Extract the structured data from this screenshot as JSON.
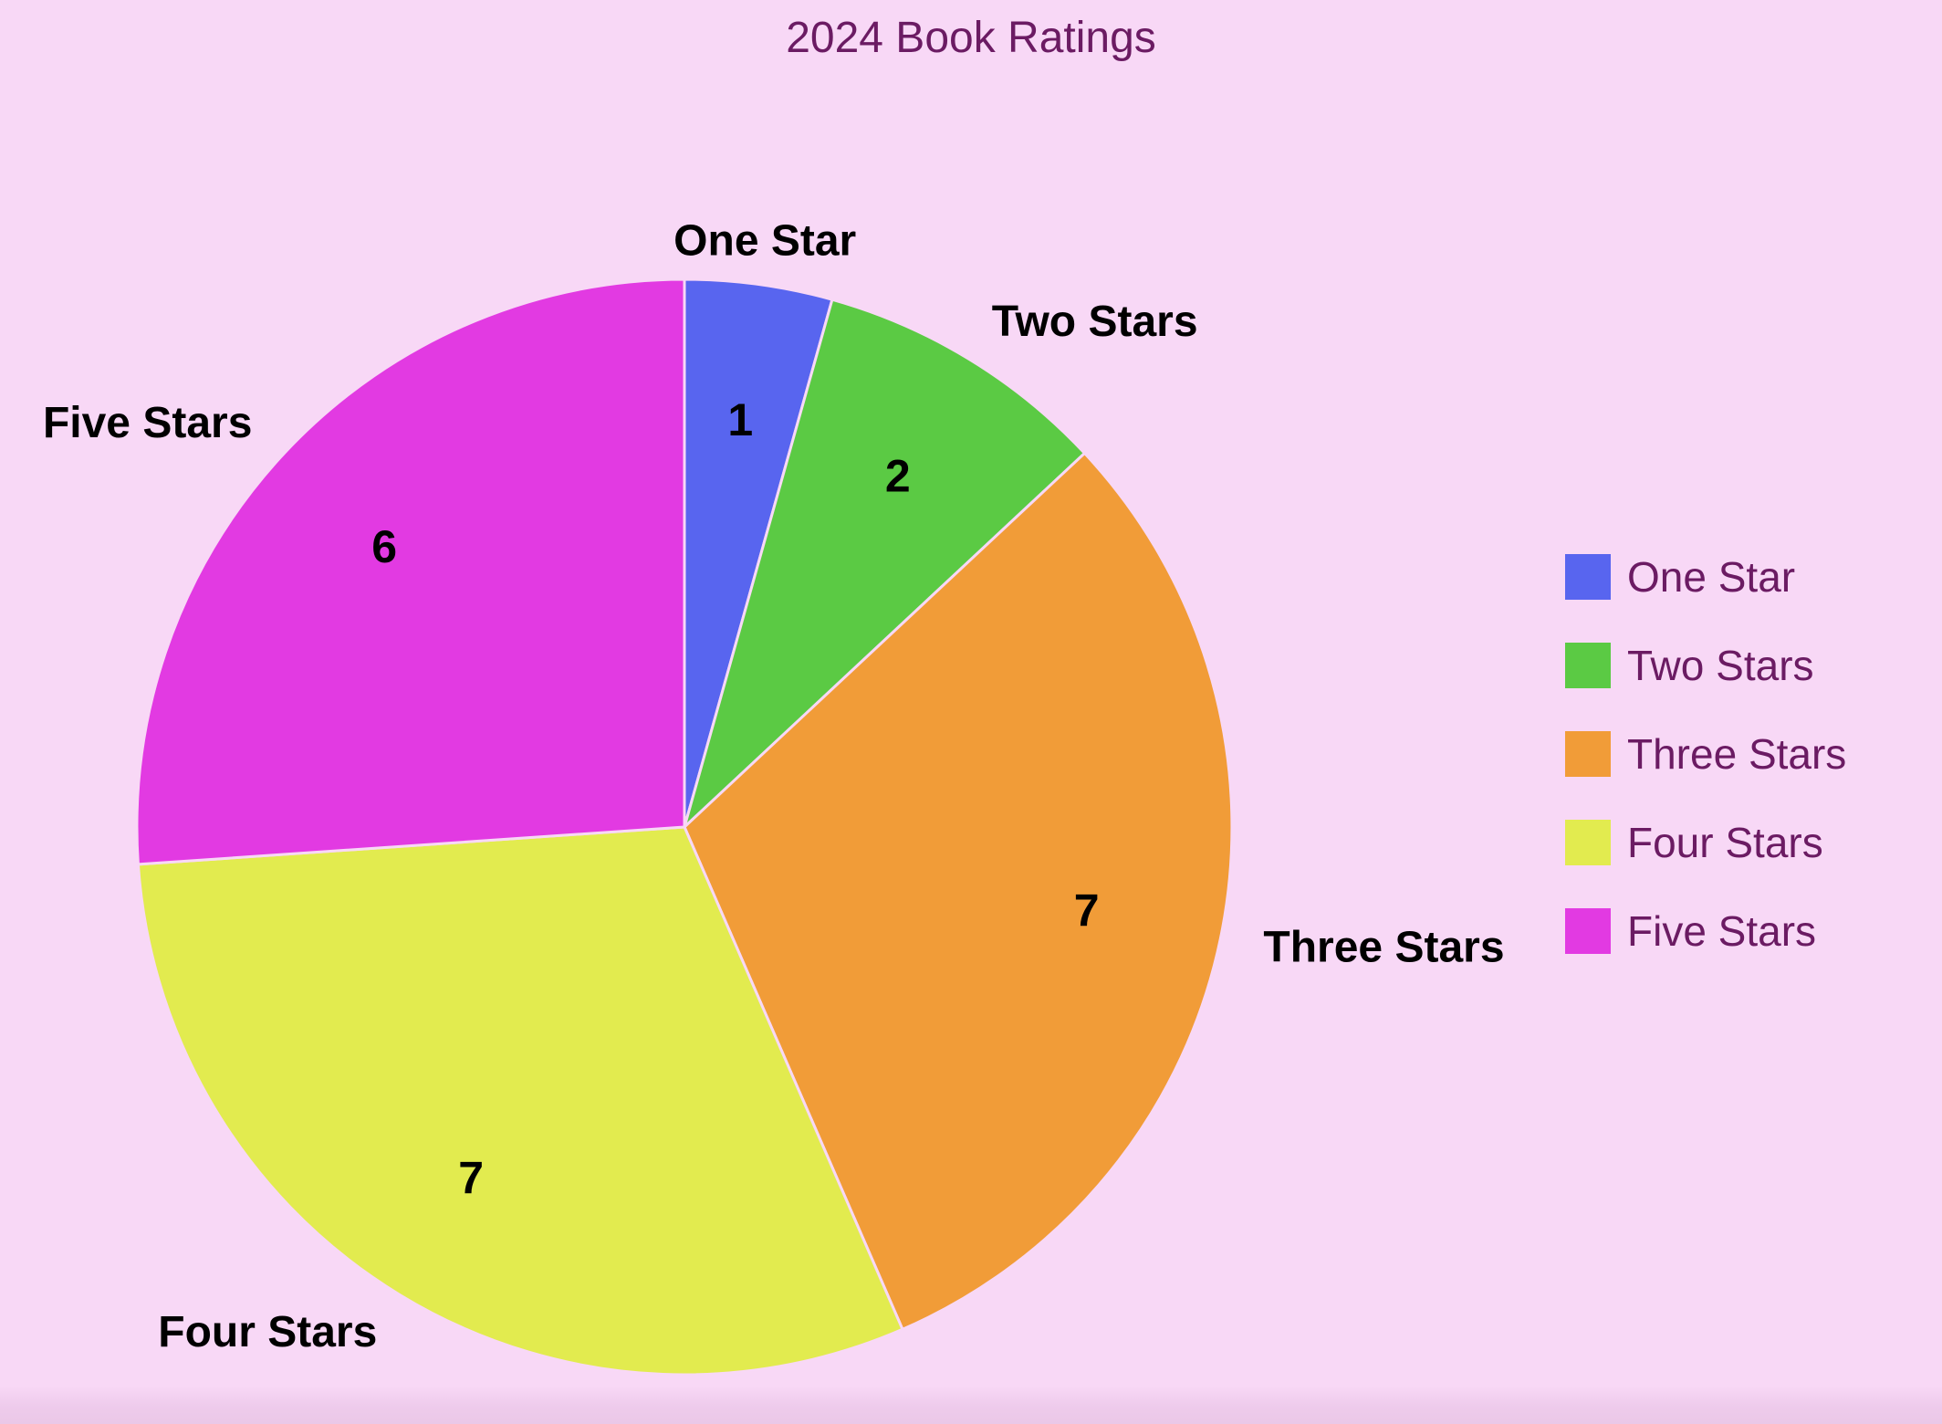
{
  "page": {
    "title": "2024 Book Ratings"
  },
  "colors": {
    "background": "#f8d8f6",
    "title_text": "#6b1b63",
    "legend_text": "#6b1b63",
    "label_text": "#000000"
  },
  "chart_data": {
    "type": "pie",
    "title": "2024 Book Ratings",
    "categories": [
      "One Star",
      "Two Stars",
      "Three Stars",
      "Four Stars",
      "Five Stars"
    ],
    "values": [
      1,
      2,
      7,
      7,
      6
    ],
    "total": 23,
    "colors": [
      "#5865ef",
      "#5bca44",
      "#f19c38",
      "#e2eb4f",
      "#e23ae2"
    ],
    "start_angle_deg": 0,
    "direction": "clockwise",
    "legend_position": "right",
    "value_labels_position": "inside",
    "category_labels_position": "outside",
    "grid": false
  }
}
